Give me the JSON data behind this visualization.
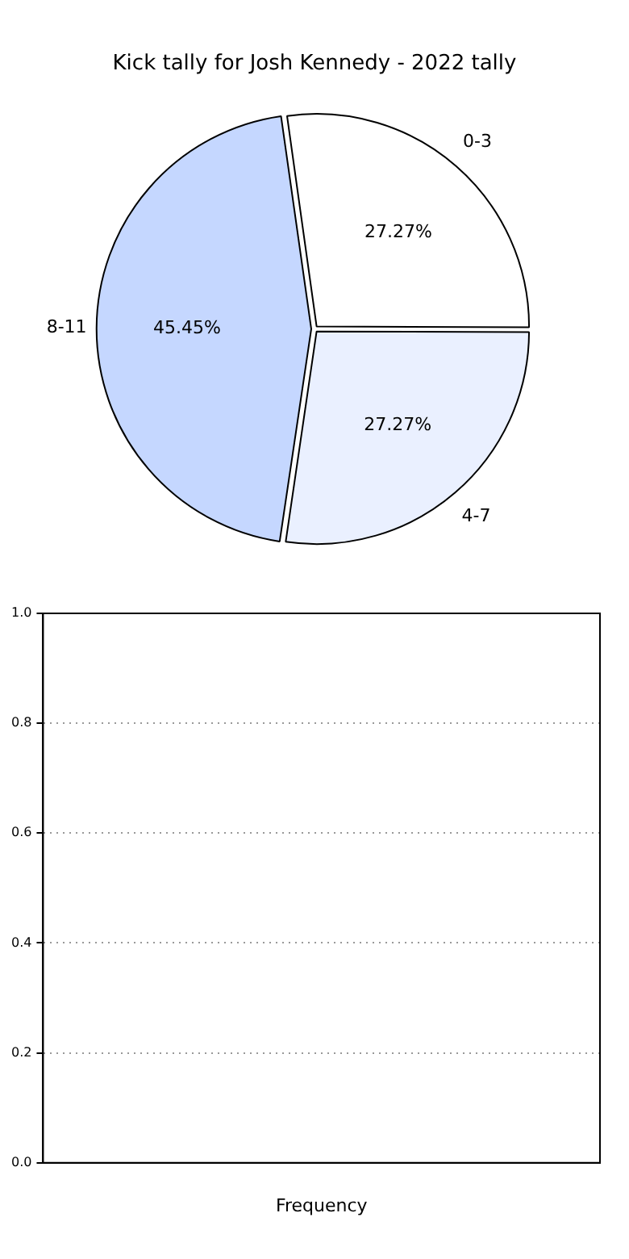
{
  "chart_data": [
    {
      "type": "pie",
      "title": "Kick tally for Josh Kennedy - 2022 tally",
      "categories": [
        "0-3",
        "4-7",
        "8-11"
      ],
      "values": [
        27.27,
        27.27,
        45.45
      ],
      "colors": [
        "#ffffff",
        "#eaf0ff",
        "#c5d7ff"
      ],
      "value_labels": [
        "27.27%",
        "27.27%",
        "45.45%"
      ],
      "legend": false
    },
    {
      "type": "bar",
      "categories": [
        null
      ],
      "values": [
        null
      ],
      "xlabel": "Frequency",
      "ylim": [
        0,
        1
      ],
      "yticks": [
        {
          "value": 0,
          "label": "0.0"
        },
        {
          "value": 0.2,
          "label": "0.2"
        },
        {
          "value": 0.4,
          "label": "0.4"
        },
        {
          "value": 0.6,
          "label": "0.6"
        },
        {
          "value": 0.8,
          "label": "0.8"
        },
        {
          "value": 1,
          "label": "1.0"
        }
      ],
      "grid": "y",
      "line_style": "dotted",
      "legend": false
    }
  ]
}
